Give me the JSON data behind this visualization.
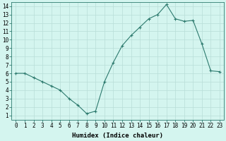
{
  "x": [
    0,
    1,
    2,
    3,
    4,
    5,
    6,
    7,
    8,
    9,
    10,
    11,
    12,
    13,
    14,
    15,
    16,
    17,
    18,
    19,
    20,
    21,
    22,
    23
  ],
  "y": [
    6.0,
    6.0,
    5.5,
    5.0,
    4.5,
    4.0,
    3.0,
    2.2,
    1.2,
    1.5,
    5.0,
    7.3,
    9.3,
    10.5,
    11.5,
    12.5,
    13.0,
    14.2,
    12.5,
    12.2,
    12.3,
    9.5,
    6.3,
    6.2
  ],
  "xlabel": "Humidex (Indice chaleur)",
  "xlim": [
    -0.5,
    23.5
  ],
  "ylim": [
    0.5,
    14.5
  ],
  "yticks": [
    1,
    2,
    3,
    4,
    5,
    6,
    7,
    8,
    9,
    10,
    11,
    12,
    13,
    14
  ],
  "xticks": [
    0,
    1,
    2,
    3,
    4,
    5,
    6,
    7,
    8,
    9,
    10,
    11,
    12,
    13,
    14,
    15,
    16,
    17,
    18,
    19,
    20,
    21,
    22,
    23
  ],
  "line_color": "#2d7a6e",
  "bg_color": "#d4f5ef",
  "grid_color": "#b8ddd8",
  "tick_fontsize": 5.5,
  "label_fontsize": 6.5
}
